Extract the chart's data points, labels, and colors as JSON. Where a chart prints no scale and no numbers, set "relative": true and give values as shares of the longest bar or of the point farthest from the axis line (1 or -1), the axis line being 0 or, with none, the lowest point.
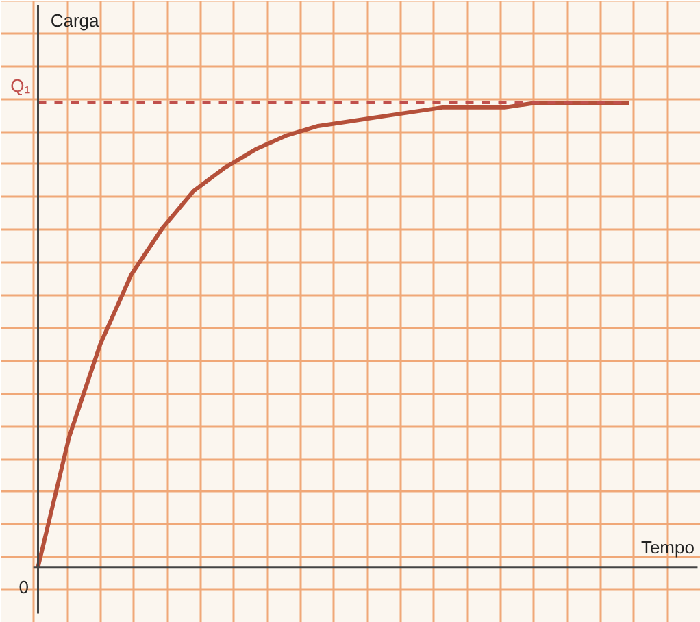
{
  "chart_data": {
    "type": "line",
    "xlabel": "Tempo",
    "ylabel": "Carga",
    "categories": [
      null,
      null,
      null,
      null,
      null,
      null,
      null,
      null,
      null,
      null,
      null,
      null,
      null,
      null,
      null,
      null,
      null,
      null,
      null,
      null
    ],
    "relative": true,
    "series": [
      {
        "color": "#b5503a",
        "values": [
          0,
          0.28,
          0.48,
          0.63,
          0.73,
          0.81,
          0.86,
          0.9,
          0.93,
          0.95,
          0.96,
          0.97,
          0.98,
          0.99,
          0.99,
          0.99,
          1.0,
          1.0,
          1.0,
          1.0
        ]
      }
    ],
    "ref_lines": [
      {
        "axis": "y",
        "value": 1,
        "label": "Q₁",
        "color": "#c0504d",
        "line_style": "dashed"
      }
    ],
    "annotations": [
      "0"
    ],
    "grid": true,
    "marker": "none",
    "line_style": "solid"
  }
}
